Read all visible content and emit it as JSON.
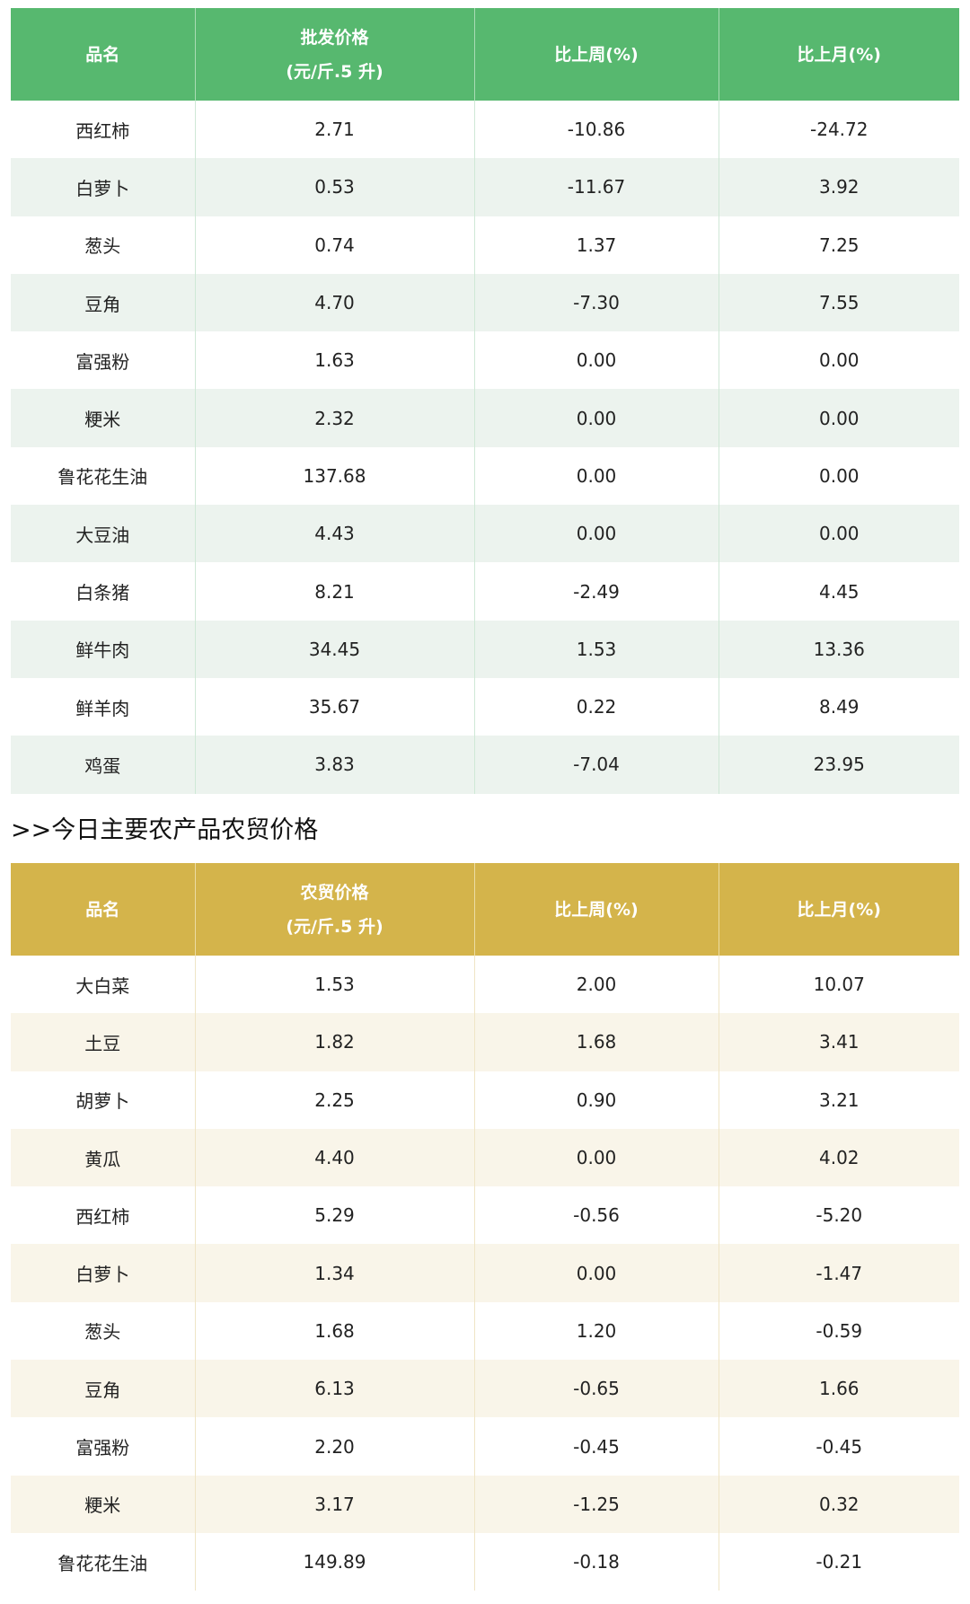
{
  "wholesale": {
    "headers": [
      "品名",
      "批发价格",
      "(元/斤.5 升)",
      "比上周(%)",
      "比上月(%)"
    ],
    "rows": [
      [
        "西红柿",
        "2.71",
        "-10.86",
        "-24.72"
      ],
      [
        "白萝卜",
        "0.53",
        "-11.67",
        "3.92"
      ],
      [
        "葱头",
        "0.74",
        "1.37",
        "7.25"
      ],
      [
        "豆角",
        "4.70",
        "-7.30",
        "7.55"
      ],
      [
        "富强粉",
        "1.63",
        "0.00",
        "0.00"
      ],
      [
        "粳米",
        "2.32",
        "0.00",
        "0.00"
      ],
      [
        "鲁花花生油",
        "137.68",
        "0.00",
        "0.00"
      ],
      [
        "大豆油",
        "4.43",
        "0.00",
        "0.00"
      ],
      [
        "白条猪",
        "8.21",
        "-2.49",
        "4.45"
      ],
      [
        "鲜牛肉",
        "34.45",
        "1.53",
        "13.36"
      ],
      [
        "鲜羊肉",
        "35.67",
        "0.22",
        "8.49"
      ],
      [
        "鸡蛋",
        "3.83",
        "-7.04",
        "23.95"
      ]
    ]
  },
  "section_heading": ">>今日主要农产品农贸价格",
  "retail": {
    "headers": [
      "品名",
      "农贸价格",
      "(元/斤.5 升)",
      "比上周(%)",
      "比上月(%)"
    ],
    "rows": [
      [
        "大白菜",
        "1.53",
        "2.00",
        "10.07"
      ],
      [
        "土豆",
        "1.82",
        "1.68",
        "3.41"
      ],
      [
        "胡萝卜",
        "2.25",
        "0.90",
        "3.21"
      ],
      [
        "黄瓜",
        "4.40",
        "0.00",
        "4.02"
      ],
      [
        "西红柿",
        "5.29",
        "-0.56",
        "-5.20"
      ],
      [
        "白萝卜",
        "1.34",
        "0.00",
        "-1.47"
      ],
      [
        "葱头",
        "1.68",
        "1.20",
        "-0.59"
      ],
      [
        "豆角",
        "6.13",
        "-0.65",
        "1.66"
      ],
      [
        "富强粉",
        "2.20",
        "-0.45",
        "-0.45"
      ],
      [
        "粳米",
        "3.17",
        "-1.25",
        "0.32"
      ],
      [
        "鲁花花生油",
        "149.89",
        "-0.18",
        "-0.21"
      ]
    ]
  },
  "colors": {
    "wholesale_header": "#57b86f",
    "retail_header": "#d4b44b"
  }
}
